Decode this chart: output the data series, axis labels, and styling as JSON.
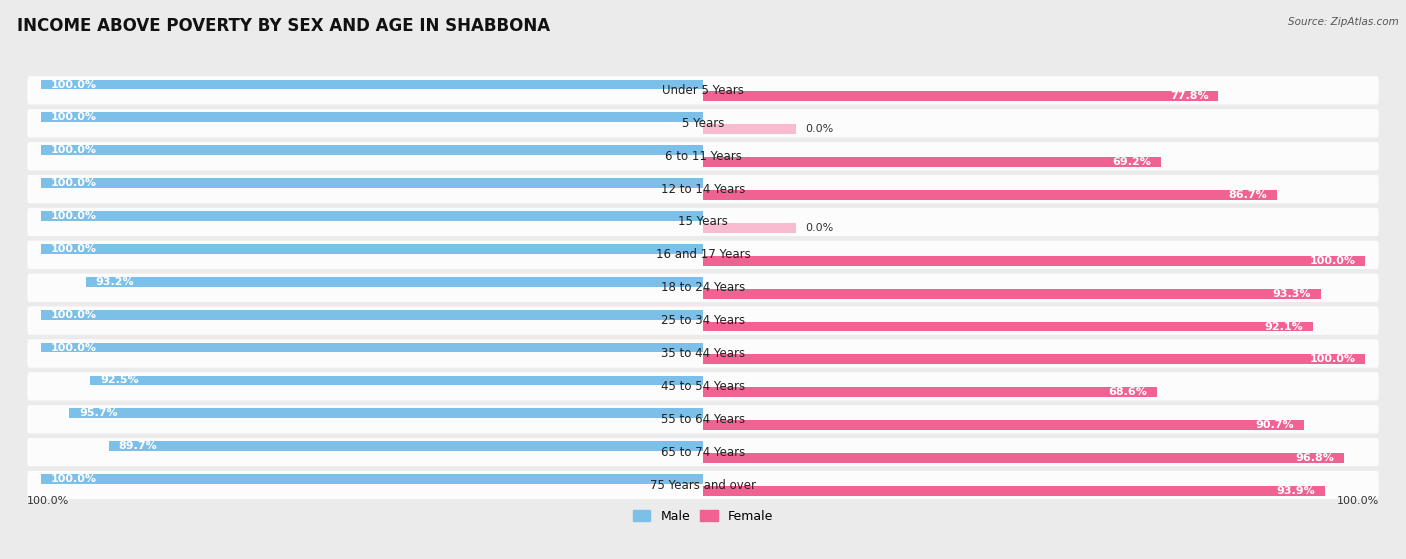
{
  "title": "INCOME ABOVE POVERTY BY SEX AND AGE IN SHABBONA",
  "source": "Source: ZipAtlas.com",
  "categories": [
    "Under 5 Years",
    "5 Years",
    "6 to 11 Years",
    "12 to 14 Years",
    "15 Years",
    "16 and 17 Years",
    "18 to 24 Years",
    "25 to 34 Years",
    "35 to 44 Years",
    "45 to 54 Years",
    "55 to 64 Years",
    "65 to 74 Years",
    "75 Years and over"
  ],
  "male_values": [
    100.0,
    100.0,
    100.0,
    100.0,
    100.0,
    100.0,
    93.2,
    100.0,
    100.0,
    92.5,
    95.7,
    89.7,
    100.0
  ],
  "female_values": [
    77.8,
    0.0,
    69.2,
    86.7,
    0.0,
    100.0,
    93.3,
    92.1,
    100.0,
    68.6,
    90.7,
    96.8,
    93.9
  ],
  "male_color": "#7cbfe8",
  "female_color_full": "#f06292",
  "female_color_light": "#f8bbd0",
  "row_bg_color": "#ffffff",
  "background_color": "#ebebeb",
  "title_fontsize": 12,
  "label_fontsize": 8.5,
  "value_fontsize": 8.0,
  "legend_male": "Male",
  "legend_female": "Female",
  "bottom_left_label": "100.0%",
  "bottom_right_label": "100.0%"
}
